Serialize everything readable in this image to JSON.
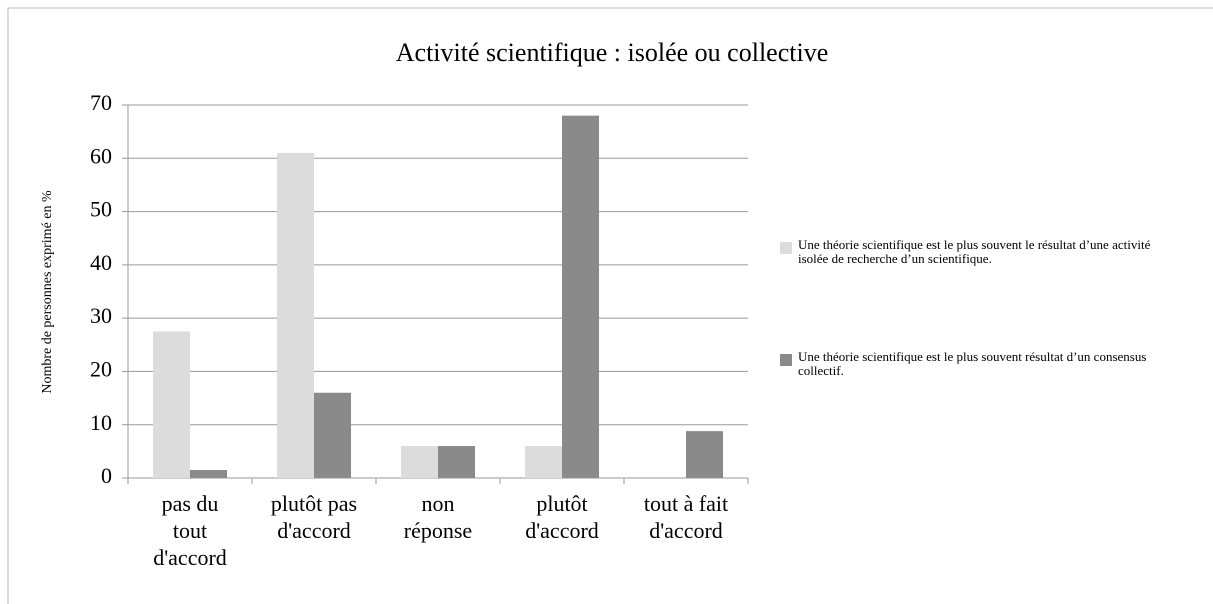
{
  "chart_data": {
    "type": "bar",
    "title": "Activité scientifique : isolée ou collective",
    "y_label": "Nombre de personnes exprimé en %",
    "categories": [
      "pas du\ntout\nd'accord",
      "plutôt pas\nd'accord",
      "non\nréponse",
      "plutôt\nd'accord",
      "tout à fait\nd'accord"
    ],
    "series": [
      {
        "name": "Une théorie scientifique est le plus souvent le résultat d’une activité isolée de recherche d’un scientifique.",
        "color": "#dcdcdc",
        "values": [
          27.5,
          61,
          6,
          6,
          0
        ]
      },
      {
        "name": "Une théorie scientifique est le plus souvent résultat d’un consensus collectif.",
        "color": "#8a8a8a",
        "values": [
          1.5,
          16,
          6,
          68,
          8.8
        ]
      }
    ],
    "ylim": [
      0,
      70
    ],
    "yticks": [
      0,
      10,
      20,
      30,
      40,
      50,
      60,
      70
    ],
    "grid": true,
    "legend": "right"
  }
}
